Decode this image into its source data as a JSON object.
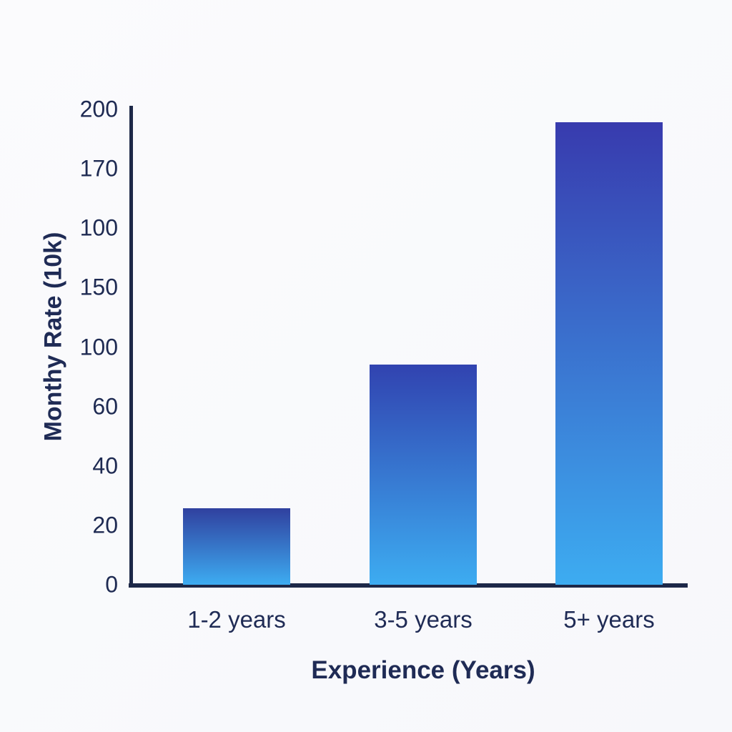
{
  "chart_data": {
    "type": "bar",
    "title": "",
    "xlabel": "Experience (Years)",
    "ylabel": "Monthy Rate (10k)",
    "categories": [
      "1-2 years",
      "3-5 years",
      "5+ years"
    ],
    "values": [
      32,
      92,
      193
    ],
    "y_axis": {
      "min": 0,
      "max": 200,
      "tick_labels_bottom_to_top": [
        "0",
        "20",
        "40",
        "60",
        "100",
        "150",
        "100",
        "170",
        "200"
      ]
    },
    "grid": false,
    "legend": "none",
    "colors": {
      "background": "#f9fafc",
      "axis_line": "#1d2848",
      "text": "#1f2b55",
      "bar_gradient_tops": [
        "#30409f",
        "#3143b0",
        "#383bae"
      ],
      "bar_gradient_bottom": "#3dacf1"
    }
  }
}
